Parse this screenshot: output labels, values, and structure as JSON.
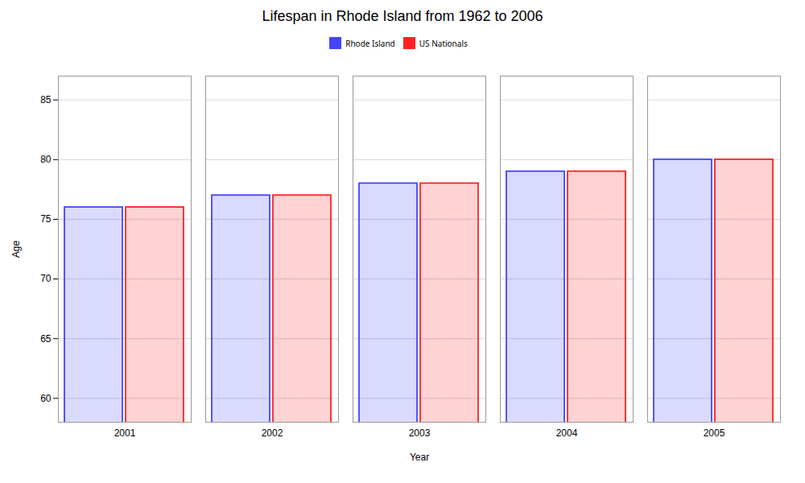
{
  "chart_data": {
    "type": "bar",
    "title": "Lifespan in Rhode Island from 1962 to 2006",
    "xlabel": "Year",
    "ylabel": "Age",
    "categories": [
      "2001",
      "2002",
      "2003",
      "2004",
      "2005"
    ],
    "series": [
      {
        "name": "Rhode Island",
        "color": "#4444ff",
        "values": [
          76,
          77,
          78,
          79,
          80
        ]
      },
      {
        "name": "US Nationals",
        "color": "#ff2222",
        "values": [
          76,
          77,
          78,
          79,
          80
        ]
      }
    ],
    "ylim": [
      58,
      87
    ],
    "yticks": [
      60,
      65,
      70,
      75,
      80,
      85
    ],
    "grid": true,
    "legend": "top"
  }
}
